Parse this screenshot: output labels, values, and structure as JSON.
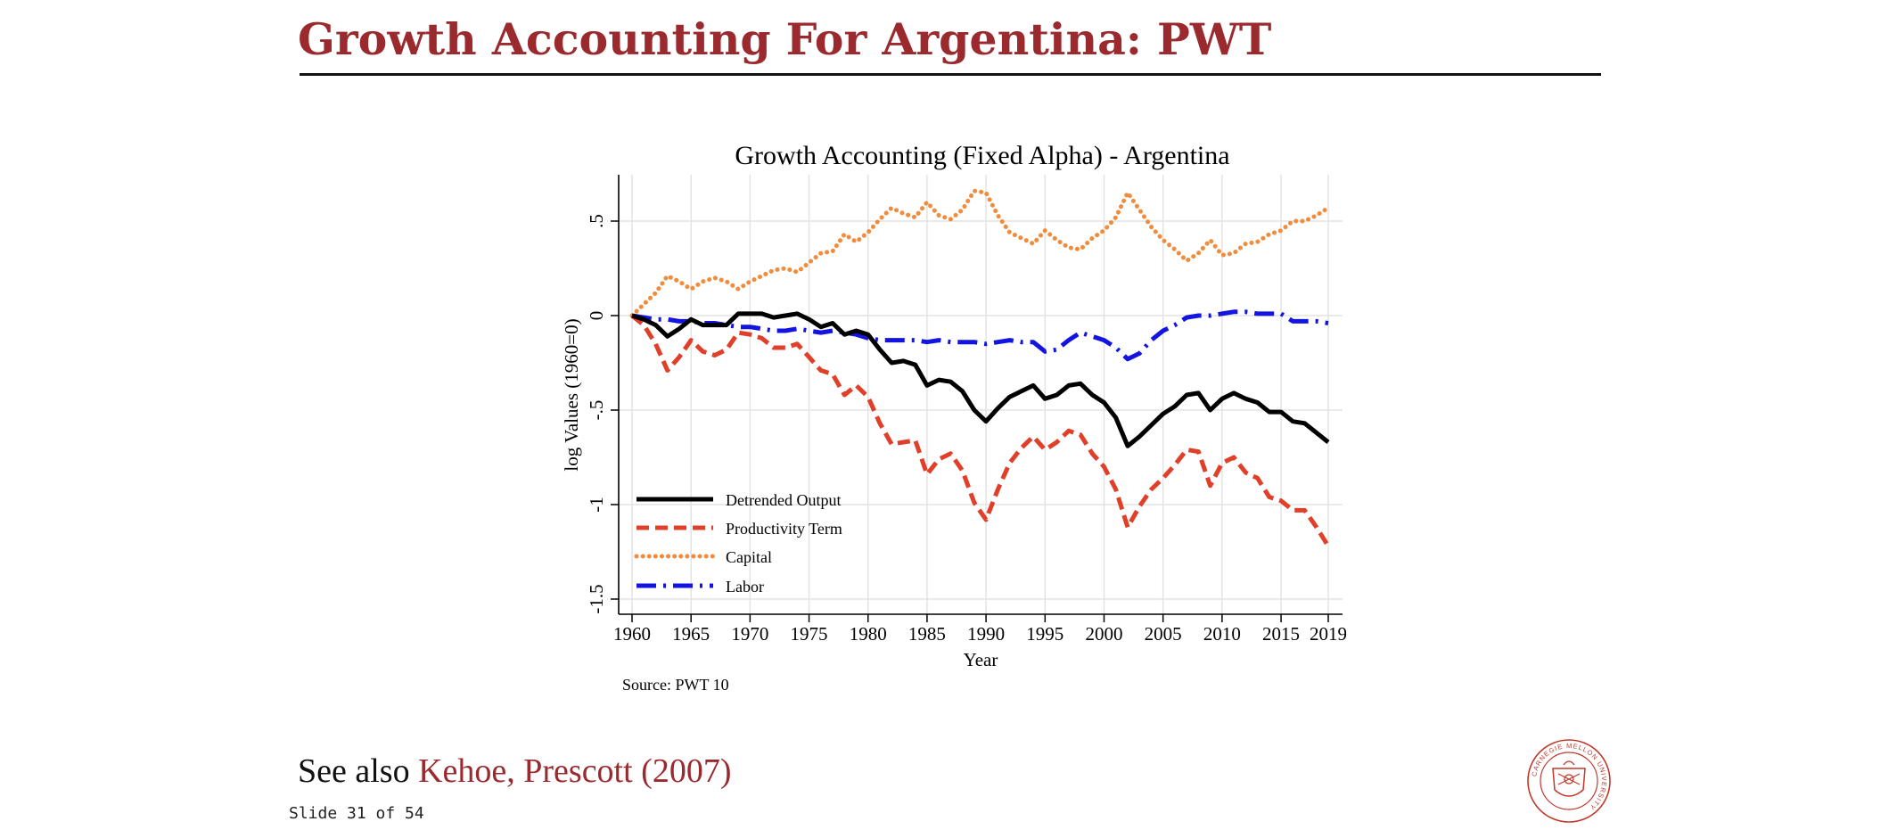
{
  "slide": {
    "title": "Growth Accounting For Argentina: PWT",
    "see_also_prefix": "See also ",
    "reference": "Kehoe, Prescott (2007)",
    "counter": "Slide 31 of 54",
    "seal_icon": "carnegie-mellon-university-seal",
    "seal_text": "CARNEGIE MELLON UNIVERSITY",
    "title_color": "#9b2a2f"
  },
  "chart_data": {
    "type": "line",
    "title": "Growth Accounting (Fixed Alpha) - Argentina",
    "xlabel": "Year",
    "ylabel": "log Values (1960=0)",
    "source": "Source: PWT 10",
    "xlim": [
      1960,
      2019
    ],
    "ylim": [
      -1.5,
      0.7
    ],
    "x_ticks": [
      1960,
      1965,
      1970,
      1975,
      1980,
      1985,
      1990,
      1995,
      2000,
      2005,
      2010,
      2015,
      2019
    ],
    "y_ticks": [
      {
        "value": 0.5,
        "label": ".5"
      },
      {
        "value": 0,
        "label": "0"
      },
      {
        "value": -0.5,
        "label": "-.5"
      },
      {
        "value": -1,
        "label": "-1"
      },
      {
        "value": -1.5,
        "label": "-1.5"
      }
    ],
    "grid": true,
    "legend_position": "bottom-left",
    "x": [
      1960,
      1961,
      1962,
      1963,
      1964,
      1965,
      1966,
      1967,
      1968,
      1969,
      1970,
      1971,
      1972,
      1973,
      1974,
      1975,
      1976,
      1977,
      1978,
      1979,
      1980,
      1981,
      1982,
      1983,
      1984,
      1985,
      1986,
      1987,
      1988,
      1989,
      1990,
      1991,
      1992,
      1993,
      1994,
      1995,
      1996,
      1997,
      1998,
      1999,
      2000,
      2001,
      2002,
      2003,
      2004,
      2005,
      2006,
      2007,
      2008,
      2009,
      2010,
      2011,
      2012,
      2013,
      2014,
      2015,
      2016,
      2017,
      2018,
      2019
    ],
    "series": [
      {
        "name": "Detrended Output",
        "color": "#000000",
        "style": "solid",
        "values": [
          0,
          -0.02,
          -0.05,
          -0.11,
          -0.07,
          -0.02,
          -0.05,
          -0.05,
          -0.05,
          0.01,
          0.01,
          0.01,
          -0.01,
          0.0,
          0.01,
          -0.02,
          -0.06,
          -0.04,
          -0.1,
          -0.08,
          -0.1,
          -0.18,
          -0.25,
          -0.24,
          -0.26,
          -0.37,
          -0.34,
          -0.35,
          -0.4,
          -0.5,
          -0.56,
          -0.49,
          -0.43,
          -0.4,
          -0.37,
          -0.44,
          -0.42,
          -0.37,
          -0.36,
          -0.42,
          -0.46,
          -0.54,
          -0.69,
          -0.64,
          -0.58,
          -0.52,
          -0.48,
          -0.42,
          -0.41,
          -0.5,
          -0.44,
          -0.41,
          -0.44,
          -0.46,
          -0.51,
          -0.51,
          -0.56,
          -0.57,
          -0.62,
          -0.67
        ]
      },
      {
        "name": "Productivity Term",
        "color": "#e0402a",
        "style": "dashed",
        "values": [
          0,
          -0.05,
          -0.15,
          -0.29,
          -0.22,
          -0.13,
          -0.19,
          -0.21,
          -0.18,
          -0.09,
          -0.1,
          -0.12,
          -0.17,
          -0.17,
          -0.15,
          -0.22,
          -0.29,
          -0.31,
          -0.42,
          -0.37,
          -0.43,
          -0.57,
          -0.68,
          -0.67,
          -0.66,
          -0.84,
          -0.76,
          -0.73,
          -0.82,
          -0.99,
          -1.08,
          -0.92,
          -0.78,
          -0.7,
          -0.64,
          -0.71,
          -0.67,
          -0.61,
          -0.63,
          -0.73,
          -0.8,
          -0.92,
          -1.12,
          -1.01,
          -0.92,
          -0.86,
          -0.79,
          -0.71,
          -0.72,
          -0.9,
          -0.78,
          -0.75,
          -0.83,
          -0.86,
          -0.96,
          -0.98,
          -1.03,
          -1.03,
          -1.12,
          -1.22
        ]
      },
      {
        "name": "Capital",
        "color": "#f08c3c",
        "style": "dotted",
        "values": [
          0,
          0.06,
          0.12,
          0.21,
          0.18,
          0.14,
          0.18,
          0.2,
          0.18,
          0.14,
          0.18,
          0.21,
          0.24,
          0.25,
          0.23,
          0.28,
          0.33,
          0.34,
          0.43,
          0.39,
          0.44,
          0.51,
          0.57,
          0.54,
          0.52,
          0.6,
          0.53,
          0.51,
          0.56,
          0.66,
          0.65,
          0.53,
          0.44,
          0.41,
          0.38,
          0.45,
          0.4,
          0.36,
          0.35,
          0.41,
          0.45,
          0.52,
          0.65,
          0.56,
          0.47,
          0.4,
          0.35,
          0.29,
          0.33,
          0.4,
          0.32,
          0.33,
          0.38,
          0.39,
          0.43,
          0.45,
          0.5,
          0.5,
          0.53,
          0.57
        ]
      },
      {
        "name": "Labor",
        "color": "#1414e0",
        "style": "dashdot",
        "values": [
          0,
          -0.01,
          -0.02,
          -0.02,
          -0.03,
          -0.03,
          -0.04,
          -0.04,
          -0.05,
          -0.06,
          -0.06,
          -0.07,
          -0.08,
          -0.08,
          -0.07,
          -0.08,
          -0.09,
          -0.08,
          -0.09,
          -0.1,
          -0.12,
          -0.13,
          -0.13,
          -0.13,
          -0.13,
          -0.14,
          -0.13,
          -0.14,
          -0.14,
          -0.14,
          -0.15,
          -0.14,
          -0.13,
          -0.14,
          -0.14,
          -0.19,
          -0.18,
          -0.13,
          -0.09,
          -0.11,
          -0.13,
          -0.17,
          -0.23,
          -0.2,
          -0.13,
          -0.08,
          -0.05,
          -0.01,
          0.0,
          0.0,
          0.01,
          0.02,
          0.02,
          0.01,
          0.01,
          0.01,
          -0.03,
          -0.03,
          -0.03,
          -0.04
        ]
      }
    ]
  }
}
